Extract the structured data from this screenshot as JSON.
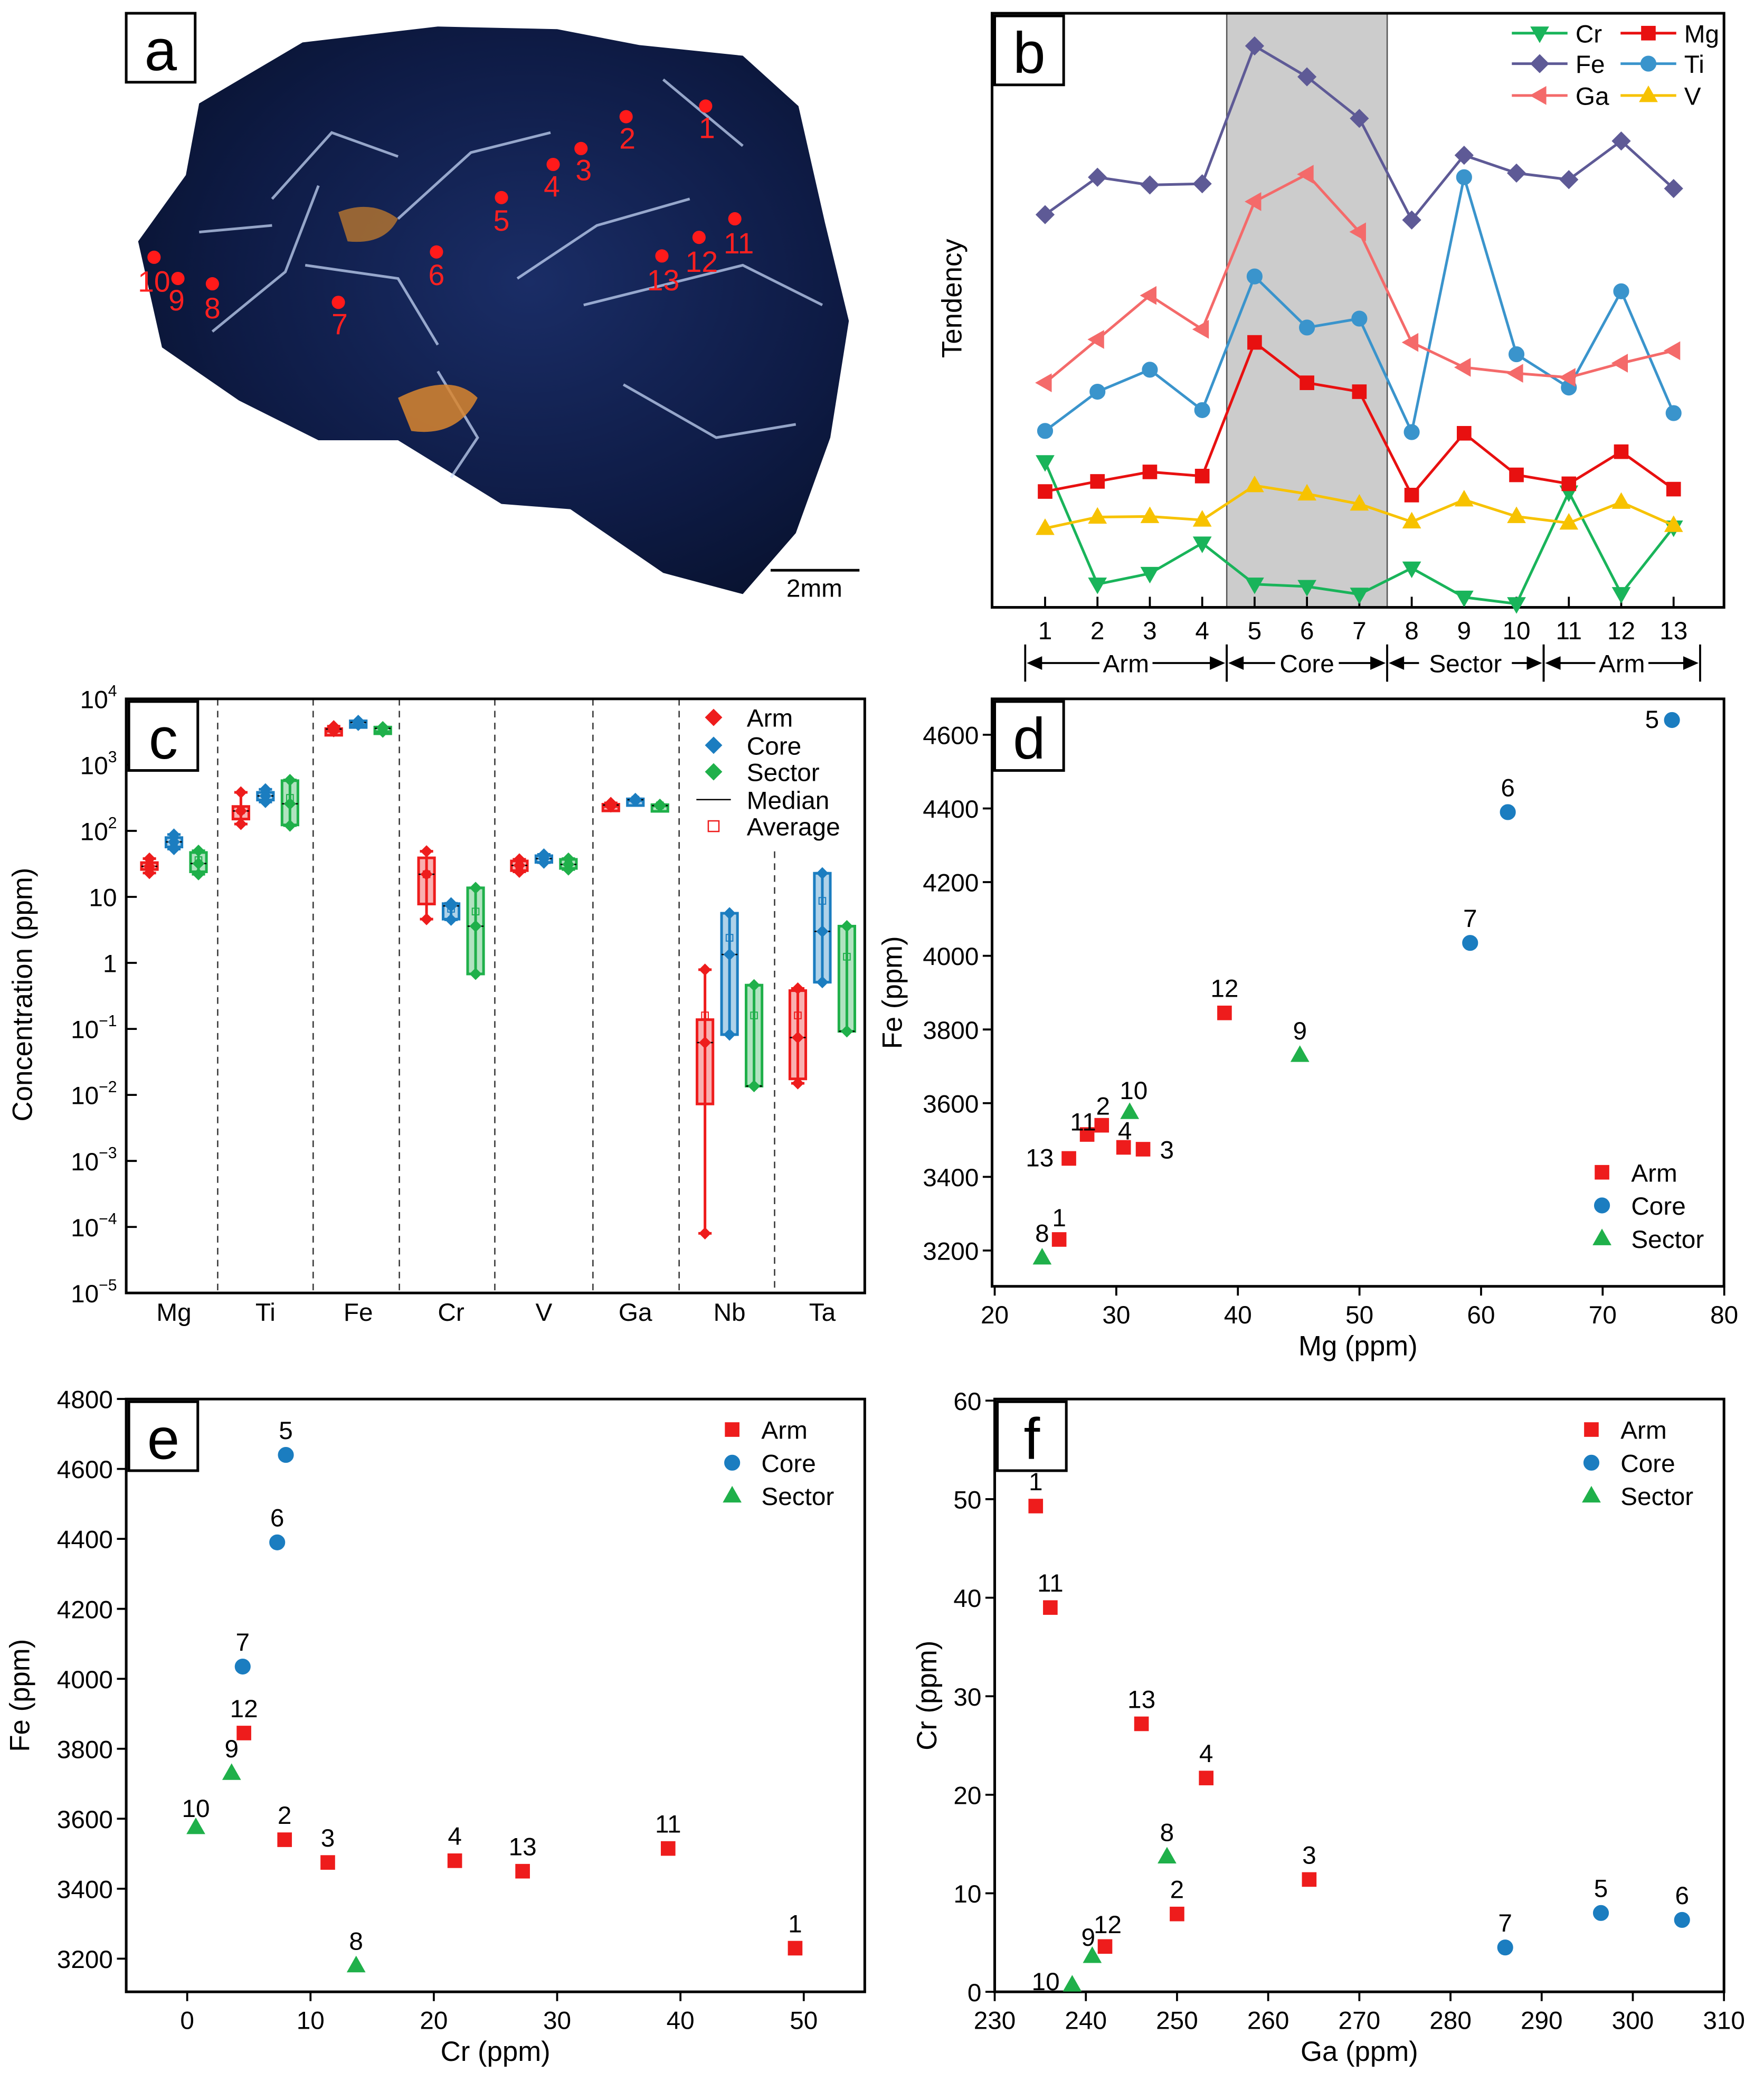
{
  "panel_labels": {
    "a": "a",
    "b": "b",
    "c": "c",
    "d": "d",
    "e": "e",
    "f": "f"
  },
  "panel_a": {
    "scale_bar": "2mm",
    "spots": [
      "1",
      "2",
      "3",
      "4",
      "5",
      "6",
      "7",
      "8",
      "9",
      "10",
      "11",
      "12",
      "13"
    ]
  },
  "colors": {
    "arm": "#ee1c1c",
    "core": "#1b7dc0",
    "sector": "#1fb04a"
  },
  "chart_data": [
    {
      "panel": "b",
      "type": "line",
      "ylabel": "Tendency",
      "categories": [
        "1",
        "2",
        "3",
        "4",
        "5",
        "6",
        "7",
        "8",
        "9",
        "10",
        "11",
        "12",
        "13"
      ],
      "shaded_categories": [
        "5",
        "7"
      ],
      "groups": [
        {
          "label": "Arm",
          "from": "1",
          "to": "4"
        },
        {
          "label": "Core",
          "from": "5",
          "to": "7"
        },
        {
          "label": "Sector",
          "from": "8",
          "to": "10"
        },
        {
          "label": "Arm",
          "from": "11",
          "to": "13"
        }
      ],
      "legend_position": "top-right",
      "series": [
        {
          "name": "Cr",
          "color": "#19b45a",
          "marker": "triangle-down",
          "values": [
            24.5,
            3.9,
            5.7,
            10.8,
            3.9,
            3.5,
            2.2,
            6.6,
            1.7,
            0.6,
            19.4,
            2.3,
            13.5
          ]
        },
        {
          "name": "Mg",
          "color": "#e81010",
          "marker": "square",
          "values": [
            19.5,
            21.2,
            22.8,
            22.1,
            44.6,
            37.8,
            36.3,
            18.9,
            29.3,
            22.3,
            20.8,
            26.2,
            19.9
          ]
        },
        {
          "name": "Fe",
          "color": "#5e5a96",
          "marker": "diamond",
          "values": [
            66.1,
            72.4,
            71.1,
            71.3,
            94.5,
            89.3,
            82.3,
            65.2,
            76.1,
            73.1,
            72.0,
            78.5,
            70.5
          ]
        },
        {
          "name": "Ti",
          "color": "#3a94cc",
          "marker": "circle",
          "values": [
            29.7,
            36.3,
            40.0,
            33.2,
            55.7,
            47.1,
            48.6,
            29.5,
            72.4,
            42.6,
            37.0,
            53.2,
            32.7
          ]
        },
        {
          "name": "Ga",
          "color": "#f46a6a",
          "marker": "triangle-left",
          "values": [
            37.8,
            45.1,
            52.5,
            46.8,
            68.3,
            72.9,
            63.2,
            44.6,
            40.4,
            39.4,
            38.7,
            41.1,
            43.2
          ]
        },
        {
          "name": "V",
          "color": "#f7c200",
          "marker": "triangle-up",
          "values": [
            13.3,
            15.2,
            15.3,
            14.7,
            20.5,
            19.1,
            17.4,
            14.4,
            18.1,
            15.3,
            14.2,
            17.7,
            13.8
          ]
        }
      ]
    },
    {
      "panel": "c",
      "type": "box",
      "ylabel": "Concentration (ppm)",
      "yscale": "log",
      "ylim": [
        1e-05,
        10000
      ],
      "yticks": [
        {
          "value": 10000,
          "base": "10",
          "exp": "4"
        },
        {
          "value": 1000,
          "base": "10",
          "exp": "3"
        },
        {
          "value": 100,
          "base": "10",
          "exp": "2"
        },
        {
          "value": 10,
          "base": "10",
          "exp": ""
        },
        {
          "value": 1,
          "base": "1",
          "exp": ""
        },
        {
          "value": 0.1,
          "base": "10",
          "exp": "−1"
        },
        {
          "value": 0.01,
          "base": "10",
          "exp": "−2"
        },
        {
          "value": 0.001,
          "base": "10",
          "exp": "−3"
        },
        {
          "value": 0.0001,
          "base": "10",
          "exp": "−4"
        },
        {
          "value": 1e-05,
          "base": "10",
          "exp": "−5"
        }
      ],
      "categories": [
        "Mg",
        "Ti",
        "Fe",
        "Cr",
        "V",
        "Ga",
        "Nb",
        "Ta"
      ],
      "groups": [
        "Arm",
        "Core",
        "Sector"
      ],
      "legend": [
        "Arm",
        "Core",
        "Sector",
        "Median",
        "Average"
      ],
      "legend_position": "top-right",
      "stats_order": [
        "min",
        "box_low",
        "median",
        "box_high",
        "max",
        "average"
      ],
      "data": {
        "Mg": {
          "Arm": [
            23,
            26,
            29,
            33,
            38,
            31
          ],
          "Core": [
            53,
            57,
            68,
            79,
            88,
            68
          ],
          "Sector": [
            22,
            24,
            32,
            47,
            50,
            36
          ]
        },
        "Ti": {
          "Arm": [
            127,
            151,
            200,
            234,
            383,
            205
          ],
          "Core": [
            274,
            293,
            338,
            383,
            426,
            345
          ],
          "Sector": [
            120,
            123,
            257,
            576,
            590,
            316
          ]
        },
        "Fe": {
          "Arm": [
            3230,
            3450,
            3480,
            3540,
            3845,
            3505
          ],
          "Core": [
            4035,
            4035,
            4390,
            4640,
            4640,
            4355
          ],
          "Sector": [
            3180,
            3180,
            3575,
            3730,
            3730,
            3495
          ]
        },
        "Cr": {
          "Arm": [
            4.6,
            7.8,
            22,
            39,
            49,
            22
          ],
          "Core": [
            4.5,
            4.6,
            7.3,
            7.9,
            8.0,
            6.6
          ],
          "Sector": [
            0.68,
            0.68,
            3.6,
            13.7,
            13.7,
            6.0
          ]
        },
        "V": {
          "Arm": [
            24,
            25,
            30,
            35,
            37,
            30
          ],
          "Core": [
            33,
            34,
            38,
            42,
            44,
            38
          ],
          "Sector": [
            26,
            27,
            31,
            37,
            38,
            32
          ]
        },
        "Ga": {
          "Arm": [
            234,
            240,
            246,
            253,
            265,
            246
          ],
          "Core": [
            286,
            286,
            296,
            305,
            305,
            296
          ],
          "Sector": [
            238,
            238,
            241,
            249,
            249,
            243
          ]
        },
        "Nb": {
          "Arm": [
            8e-05,
            0.0073,
            0.062,
            0.138,
            0.79,
            0.16
          ],
          "Core": [
            0.082,
            0.082,
            1.34,
            5.65,
            5.65,
            2.4
          ],
          "Sector": [
            0.0136,
            0.0136,
            0.0136,
            0.46,
            0.46,
            0.16
          ]
        },
        "Ta": {
          "Arm": [
            0.015,
            0.0175,
            0.074,
            0.38,
            0.41,
            0.16
          ],
          "Core": [
            0.51,
            0.51,
            3.0,
            22.8,
            22.8,
            8.7
          ],
          "Sector": [
            0.092,
            0.092,
            0.092,
            3.6,
            3.6,
            1.24
          ]
        }
      }
    },
    {
      "panel": "d",
      "type": "scatter",
      "xlabel": "Mg (ppm)",
      "ylabel": "Fe (ppm)",
      "xlim": [
        20,
        80
      ],
      "ylim": [
        3100,
        4700
      ],
      "xticks": [
        "20",
        "30",
        "40",
        "50",
        "60",
        "70",
        "80"
      ],
      "yticks": [
        "3200",
        "3400",
        "3600",
        "3800",
        "4000",
        "4200",
        "4400",
        "4600"
      ],
      "legend": [
        "Arm",
        "Core",
        "Sector"
      ],
      "legend_position": "bottom-right",
      "points": [
        {
          "id": "1",
          "group": "Arm",
          "x": 25.3,
          "y": 3230
        },
        {
          "id": "2",
          "group": "Arm",
          "x": 28.8,
          "y": 3540
        },
        {
          "id": "3",
          "group": "Arm",
          "x": 32.2,
          "y": 3475
        },
        {
          "id": "4",
          "group": "Arm",
          "x": 30.6,
          "y": 3480
        },
        {
          "id": "5",
          "group": "Core",
          "x": 75.7,
          "y": 4640
        },
        {
          "id": "6",
          "group": "Core",
          "x": 62.2,
          "y": 4390
        },
        {
          "id": "7",
          "group": "Core",
          "x": 59.1,
          "y": 4035
        },
        {
          "id": "8",
          "group": "Sector",
          "x": 23.9,
          "y": 3180
        },
        {
          "id": "9",
          "group": "Sector",
          "x": 45.1,
          "y": 3730
        },
        {
          "id": "10",
          "group": "Sector",
          "x": 31.1,
          "y": 3575
        },
        {
          "id": "11",
          "group": "Arm",
          "x": 27.6,
          "y": 3515
        },
        {
          "id": "12",
          "group": "Arm",
          "x": 38.9,
          "y": 3845
        },
        {
          "id": "13",
          "group": "Arm",
          "x": 26.1,
          "y": 3450
        }
      ]
    },
    {
      "panel": "e",
      "type": "scatter",
      "xlabel": "Cr (ppm)",
      "ylabel": "Fe (ppm)",
      "xlim": [
        -5,
        55
      ],
      "ylim": [
        3100,
        4800
      ],
      "xticks": [
        "0",
        "10",
        "20",
        "30",
        "40",
        "50"
      ],
      "yticks": [
        "3200",
        "3400",
        "3600",
        "3800",
        "4000",
        "4200",
        "4400",
        "4600",
        "4800"
      ],
      "legend": [
        "Arm",
        "Core",
        "Sector"
      ],
      "legend_position": "top-right",
      "points": [
        {
          "id": "1",
          "group": "Arm",
          "x": 49.3,
          "y": 3230
        },
        {
          "id": "2",
          "group": "Arm",
          "x": 7.9,
          "y": 3540
        },
        {
          "id": "3",
          "group": "Arm",
          "x": 11.4,
          "y": 3475
        },
        {
          "id": "4",
          "group": "Arm",
          "x": 21.7,
          "y": 3480
        },
        {
          "id": "5",
          "group": "Core",
          "x": 8.0,
          "y": 4640
        },
        {
          "id": "6",
          "group": "Core",
          "x": 7.3,
          "y": 4390
        },
        {
          "id": "7",
          "group": "Core",
          "x": 4.5,
          "y": 4035
        },
        {
          "id": "8",
          "group": "Sector",
          "x": 13.7,
          "y": 3180
        },
        {
          "id": "9",
          "group": "Sector",
          "x": 3.6,
          "y": 3730
        },
        {
          "id": "10",
          "group": "Sector",
          "x": 0.7,
          "y": 3575
        },
        {
          "id": "11",
          "group": "Arm",
          "x": 39.0,
          "y": 3515
        },
        {
          "id": "12",
          "group": "Arm",
          "x": 4.6,
          "y": 3845
        },
        {
          "id": "13",
          "group": "Arm",
          "x": 27.2,
          "y": 3450
        }
      ]
    },
    {
      "panel": "f",
      "type": "scatter",
      "xlabel": "Ga (ppm)",
      "ylabel": "Cr (ppm)",
      "xlim": [
        230,
        310
      ],
      "ylim": [
        0,
        60
      ],
      "xticks": [
        "230",
        "240",
        "250",
        "260",
        "270",
        "280",
        "290",
        "300",
        "310"
      ],
      "yticks": [
        "0",
        "10",
        "20",
        "30",
        "40",
        "50",
        "60"
      ],
      "legend": [
        "Arm",
        "Core",
        "Sector"
      ],
      "legend_position": "top-right",
      "points": [
        {
          "id": "1",
          "group": "Arm",
          "x": 234.5,
          "y": 49.3
        },
        {
          "id": "2",
          "group": "Arm",
          "x": 250.0,
          "y": 7.9
        },
        {
          "id": "3",
          "group": "Arm",
          "x": 264.5,
          "y": 11.4
        },
        {
          "id": "4",
          "group": "Arm",
          "x": 253.2,
          "y": 21.7
        },
        {
          "id": "5",
          "group": "Core",
          "x": 296.5,
          "y": 8.0
        },
        {
          "id": "6",
          "group": "Core",
          "x": 305.4,
          "y": 7.3
        },
        {
          "id": "7",
          "group": "Core",
          "x": 286.0,
          "y": 4.5
        },
        {
          "id": "8",
          "group": "Sector",
          "x": 248.9,
          "y": 13.7
        },
        {
          "id": "9",
          "group": "Sector",
          "x": 240.7,
          "y": 3.6
        },
        {
          "id": "10",
          "group": "Sector",
          "x": 238.5,
          "y": 0.7
        },
        {
          "id": "11",
          "group": "Arm",
          "x": 236.1,
          "y": 39.0
        },
        {
          "id": "12",
          "group": "Arm",
          "x": 242.1,
          "y": 4.6
        },
        {
          "id": "13",
          "group": "Arm",
          "x": 246.1,
          "y": 27.2
        }
      ]
    }
  ]
}
